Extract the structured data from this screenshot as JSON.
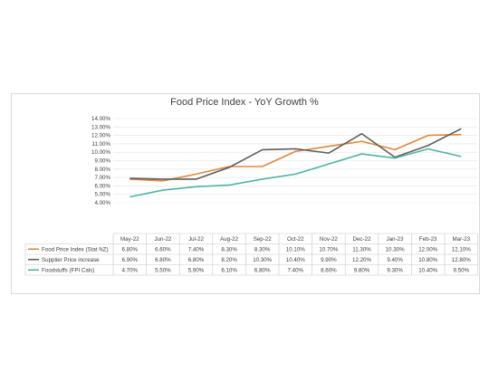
{
  "chart_data": {
    "type": "line",
    "title": "Food Price Index - YoY Growth %",
    "categories": [
      "May-22",
      "Jun-22",
      "Jul-22",
      "Aug-22",
      "Sep-22",
      "Oct-22",
      "Nov-22",
      "Dec-22",
      "Jan-23",
      "Feb-23",
      "Mar-23"
    ],
    "ylim": [
      4,
      14
    ],
    "yticks": [
      "4.00%",
      "5.00%",
      "6.00%",
      "7.00%",
      "8.00%",
      "9.00%",
      "10.00%",
      "11.00%",
      "12.00%",
      "13.00%",
      "14.00%"
    ],
    "grid": true,
    "legend": "data-table",
    "series": [
      {
        "name": "Food Price Index (Stat NZ)",
        "color": "#e0883a",
        "values": [
          6.8,
          6.6,
          7.4,
          8.3,
          8.3,
          10.1,
          10.7,
          11.3,
          10.3,
          12.0,
          12.1
        ],
        "labels": [
          "6.80%",
          "6.60%",
          "7.40%",
          "8.30%",
          "8.30%",
          "10.10%",
          "10.70%",
          "11.30%",
          "10.30%",
          "12.00%",
          "12.10%"
        ]
      },
      {
        "name": "Supplier Price increase",
        "color": "#5f5f5f",
        "values": [
          6.9,
          6.8,
          6.8,
          8.2,
          10.3,
          10.4,
          9.9,
          12.2,
          9.4,
          10.8,
          12.8
        ],
        "labels": [
          "6.90%",
          "6.80%",
          "6.80%",
          "8.20%",
          "10.30%",
          "10.40%",
          "9.90%",
          "12.20%",
          "9.40%",
          "10.80%",
          "12.80%"
        ]
      },
      {
        "name": "Foodstuffs (FPI Cals)",
        "color": "#4fb3a5",
        "values": [
          4.7,
          5.5,
          5.9,
          6.1,
          6.8,
          7.4,
          8.6,
          9.8,
          9.3,
          10.4,
          9.5
        ],
        "labels": [
          "4.70%",
          "5.50%",
          "5.90%",
          "6.10%",
          "6.80%",
          "7.40%",
          "8.60%",
          "9.80%",
          "9.30%",
          "10.40%",
          "9.50%"
        ]
      }
    ]
  }
}
